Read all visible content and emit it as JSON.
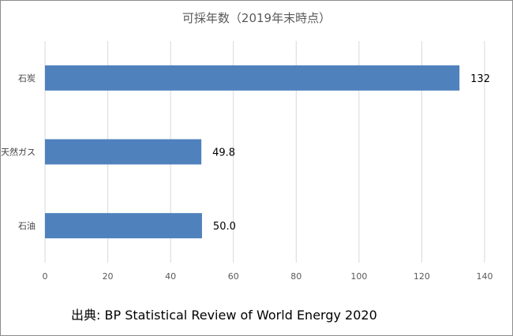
{
  "chart_data": {
    "type": "bar",
    "orientation": "horizontal",
    "title": "可採年数（2019年末時点）",
    "categories": [
      "石炭",
      "天然ガス",
      "石油"
    ],
    "values": [
      132,
      49.8,
      50.0
    ],
    "data_labels": [
      "132",
      "49.8",
      "50.0"
    ],
    "xlim": [
      0,
      140
    ],
    "x_ticks": [
      0,
      20,
      40,
      60,
      80,
      100,
      120,
      140
    ],
    "grid": true,
    "legend": "none",
    "bar_color": "#4f81bd"
  },
  "source": "出典: BP Statistical Review of World Energy 2020"
}
